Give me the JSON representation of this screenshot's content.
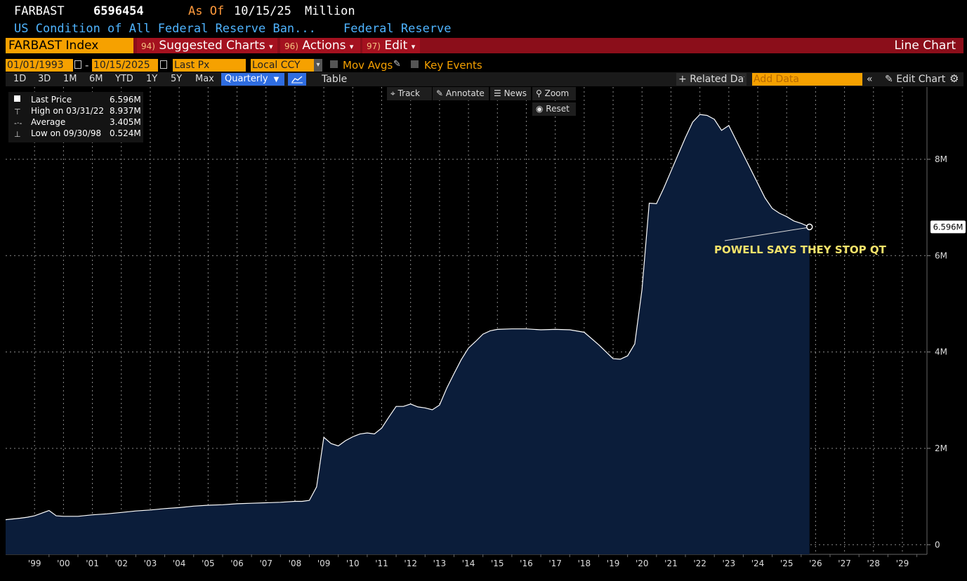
{
  "header": {
    "ticker": "FARBAST",
    "last_value": "6596454",
    "as_of_label": "As Of",
    "as_of_date": "10/15/25",
    "units": "Million",
    "description": "US Condition of All Federal Reserve Ban...",
    "source": "Federal Reserve"
  },
  "command_bar": {
    "security": "FARBAST Index",
    "menus": [
      {
        "num": "94)",
        "label": "Suggested Charts",
        "arrow": "▾"
      },
      {
        "num": "96)",
        "label": "Actions",
        "arrow": "▾"
      },
      {
        "num": "97)",
        "label": "Edit",
        "arrow": "▾"
      }
    ],
    "chart_type": "Line Chart"
  },
  "controls": {
    "start_date": "01/01/1993",
    "separator": "-",
    "end_date": "10/15/2025",
    "field": "Last Px",
    "currency": "Local CCY",
    "mov_avgs": "Mov Avgs",
    "key_events": "Key Events"
  },
  "periods": [
    "1D",
    "3D",
    "1M",
    "6M",
    "YTD",
    "1Y",
    "5Y",
    "Max"
  ],
  "frequency": "Quarterly",
  "table_label": "Table",
  "related_label": "Related Data",
  "add_data_placeholder": "Add Data",
  "edit_chart_label": "Edit Chart",
  "tools": {
    "track": "Track",
    "annotate": "Annotate",
    "news": "News",
    "zoom": "Zoom",
    "reset": "Reset"
  },
  "legend": [
    {
      "label": "Last Price",
      "value": "6.596M"
    },
    {
      "label": "High on 03/31/22",
      "value": "8.937M"
    },
    {
      "label": "Average",
      "value": "3.405M"
    },
    {
      "label": "Low on 09/30/98",
      "value": "0.524M"
    }
  ],
  "colors": {
    "area": "#0b1d3a",
    "line": "#ffffff",
    "annotation": "#f5e36a",
    "accent": "#f6a100",
    "bar": "#8b0e1a"
  },
  "chart_data": {
    "type": "area",
    "ylim": [
      -0.2,
      9.5
    ],
    "xlim": [
      1998.0,
      2029.85
    ],
    "yticks": [
      0,
      2,
      4,
      6,
      8
    ],
    "ytick_labels": [
      "0",
      "2M",
      "4M",
      "6M",
      "8M"
    ],
    "xtick_labels": [
      "'99",
      "'00",
      "'01",
      "'02",
      "'03",
      "'04",
      "'05",
      "'06",
      "'07",
      "'08",
      "'09",
      "'10",
      "'11",
      "'12",
      "'13",
      "'14",
      "'15",
      "'16",
      "'17",
      "'18",
      "'19",
      "'20",
      "'21",
      "'22",
      "'23",
      "'24",
      "'25",
      "'26",
      "'27",
      "'28",
      "'29"
    ],
    "last_label": "6.596M",
    "annotation": "POWELL SAYS THEY STOP QT",
    "grid": true,
    "series": [
      {
        "x": [
          1998.0,
          1998.5,
          1998.75,
          1999.0,
          1999.5,
          1999.75,
          2000.0,
          2000.5,
          2001.0,
          2001.5,
          2002.0,
          2002.5,
          2003.0,
          2003.5,
          2004.0,
          2004.5,
          2005.0,
          2005.5,
          2006.0,
          2006.5,
          2007.0,
          2007.5,
          2008.0,
          2008.25,
          2008.5,
          2008.75,
          2009.0,
          2009.25,
          2009.5,
          2009.75,
          2010.0,
          2010.25,
          2010.5,
          2010.75,
          2011.0,
          2011.25,
          2011.5,
          2011.75,
          2012.0,
          2012.25,
          2012.5,
          2012.75,
          2013.0,
          2013.25,
          2013.5,
          2013.75,
          2014.0,
          2014.25,
          2014.5,
          2014.75,
          2015.0,
          2015.5,
          2016.0,
          2016.5,
          2017.0,
          2017.5,
          2018.0,
          2018.5,
          2019.0,
          2019.25,
          2019.5,
          2019.75,
          2020.0,
          2020.25,
          2020.5,
          2020.75,
          2021.0,
          2021.25,
          2021.5,
          2021.75,
          2022.0,
          2022.25,
          2022.5,
          2022.75,
          2023.0,
          2023.25,
          2023.5,
          2023.75,
          2024.0,
          2024.25,
          2024.5,
          2024.75,
          2025.0,
          2025.25,
          2025.5,
          2025.79
        ],
        "y": [
          0.52,
          0.55,
          0.57,
          0.6,
          0.71,
          0.6,
          0.59,
          0.59,
          0.62,
          0.64,
          0.67,
          0.7,
          0.72,
          0.75,
          0.77,
          0.8,
          0.82,
          0.83,
          0.85,
          0.86,
          0.87,
          0.88,
          0.9,
          0.9,
          0.92,
          1.2,
          2.23,
          2.1,
          2.05,
          2.16,
          2.24,
          2.3,
          2.32,
          2.3,
          2.42,
          2.65,
          2.87,
          2.87,
          2.92,
          2.86,
          2.84,
          2.8,
          2.9,
          3.25,
          3.55,
          3.84,
          4.08,
          4.22,
          4.37,
          4.44,
          4.47,
          4.48,
          4.48,
          4.46,
          4.47,
          4.46,
          4.41,
          4.15,
          3.86,
          3.85,
          3.92,
          4.17,
          5.3,
          7.09,
          7.08,
          7.4,
          7.75,
          8.1,
          8.45,
          8.77,
          8.93,
          8.91,
          8.83,
          8.6,
          8.7,
          8.4,
          8.1,
          7.8,
          7.5,
          7.2,
          6.98,
          6.88,
          6.81,
          6.72,
          6.67,
          6.596
        ]
      }
    ]
  }
}
